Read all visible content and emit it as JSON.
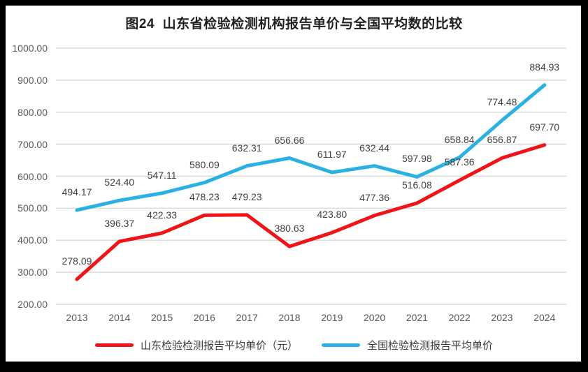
{
  "title": "图24  山东省检验检测机构报告单价与全国平均数的比较",
  "colors": {
    "shandong": "#ee1418",
    "national": "#2ab0e3",
    "grid": "#dadada",
    "axis_text": "#595959",
    "data_label_text": "#404040",
    "frame": "#000000",
    "background": "#ffffff"
  },
  "legend": {
    "items": [
      {
        "label": "山东检验检测报告平均单价（元）",
        "color_key": "shandong"
      },
      {
        "label": "全国检验检测报告平均单价",
        "color_key": "national"
      }
    ]
  },
  "chart_data": {
    "type": "line",
    "title": "图24  山东省检验检测机构报告单价与全国平均数的比较",
    "x": [
      "2013",
      "2014",
      "2015",
      "2016",
      "2017",
      "2018",
      "2019",
      "2020",
      "2021",
      "2022",
      "2023",
      "2024"
    ],
    "series": [
      {
        "name": "山东检验检测报告平均单价（元）",
        "color_key": "shandong",
        "values": [
          278.09,
          396.37,
          422.33,
          478.23,
          479.23,
          380.63,
          423.8,
          477.36,
          516.08,
          587.36,
          656.87,
          697.7
        ]
      },
      {
        "name": "全国检验检测报告平均单价",
        "color_key": "national",
        "values": [
          494.17,
          524.4,
          547.11,
          580.09,
          632.31,
          656.66,
          611.97,
          632.44,
          597.98,
          658.84,
          774.48,
          884.93
        ]
      }
    ],
    "ylim": [
      200,
      1000
    ],
    "ytick_step": 100,
    "ytick_format_decimals": 2,
    "grid": true,
    "data_labels": true,
    "data_label_format_decimals": 2,
    "legend_position": "bottom",
    "xlabel": "",
    "ylabel": ""
  }
}
